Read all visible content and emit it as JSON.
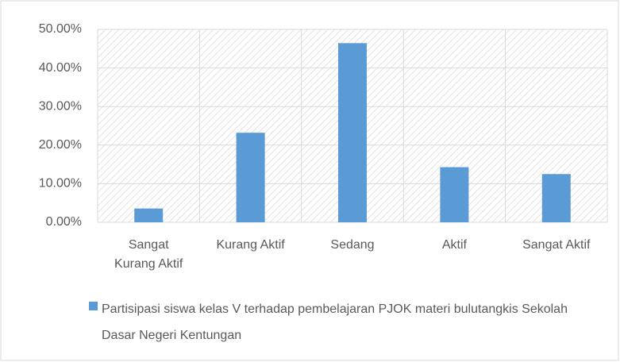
{
  "chart_data": {
    "type": "bar",
    "categories": [
      "Sangat Kurang Aktif",
      "Kurang Aktif",
      "Sedang",
      "Aktif",
      "Sangat Aktif"
    ],
    "series": [
      {
        "name": "Partisipasi siswa kelas V terhadap pembelajaran PJOK materi bulutangkis Sekolah Dasar Negeri Kentungan",
        "color": "#5b9bd5",
        "values": [
          3.57,
          23.21,
          46.43,
          14.29,
          12.5
        ]
      }
    ],
    "ylim": [
      0,
      50
    ],
    "yticks": [
      {
        "value": 0,
        "label": "0.00%"
      },
      {
        "value": 10,
        "label": "10.00%"
      },
      {
        "value": 20,
        "label": "20.00%"
      },
      {
        "value": 30,
        "label": "30.00%"
      },
      {
        "value": 40,
        "label": "40.00%"
      },
      {
        "value": 50,
        "label": "50.00%"
      }
    ],
    "grid": true,
    "legend": "bottom"
  }
}
